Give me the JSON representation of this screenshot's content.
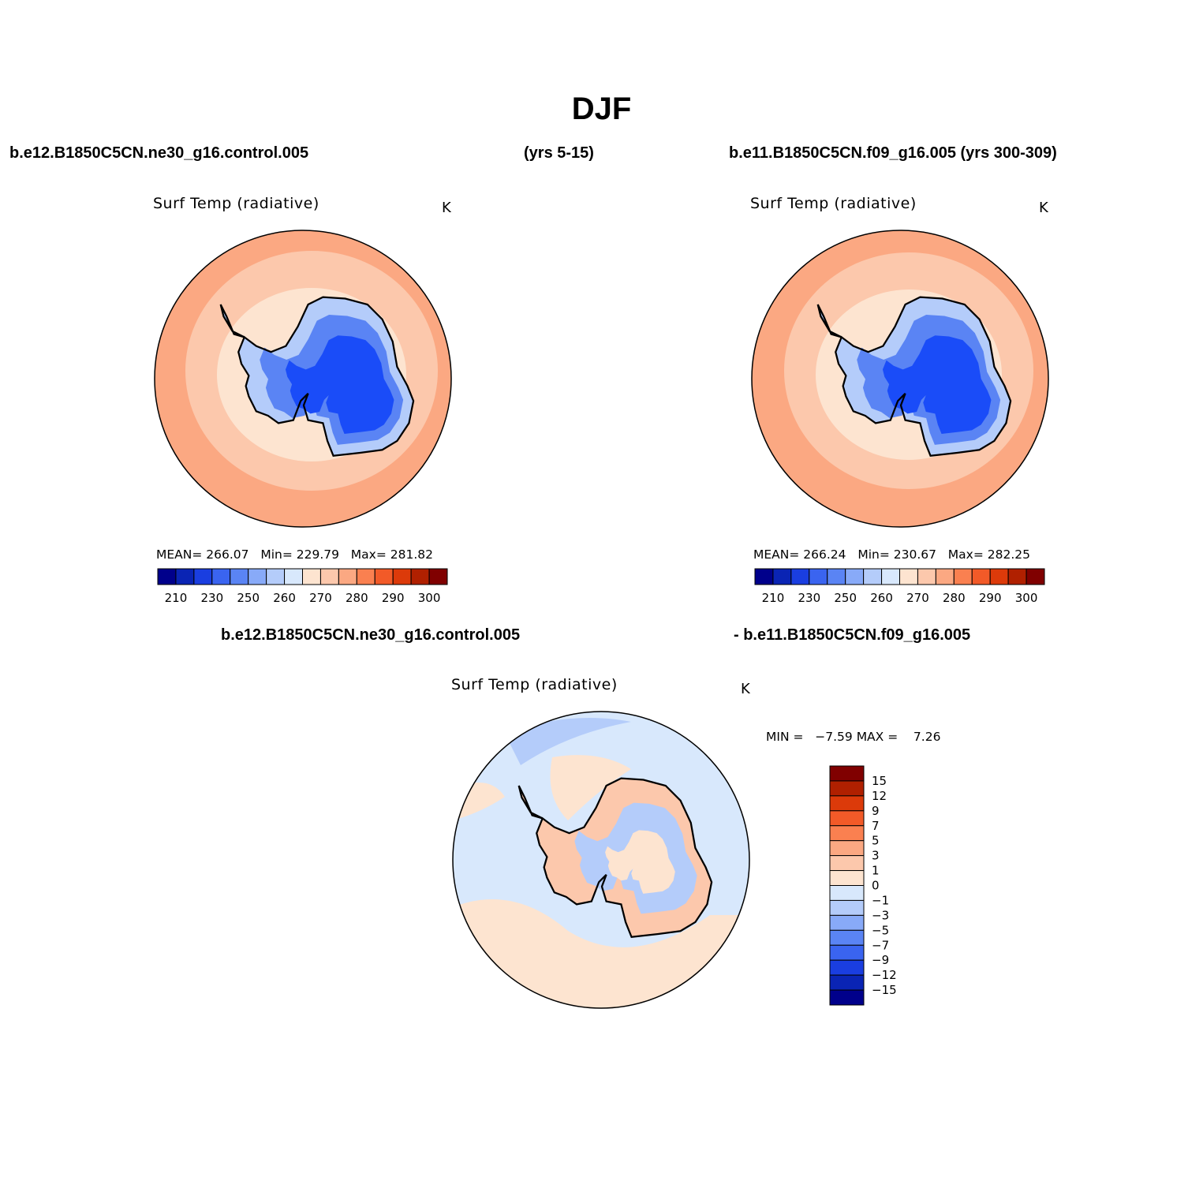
{
  "header": {
    "title": "DJF",
    "case1": "b.e12.B1850C5CN.ne30_g16.control.005",
    "case1_years": "(yrs 5-15)",
    "case2": "b.e11.B1850C5CN.f09_g16.005 (yrs 300-309)",
    "diff_case1": "b.e12.B1850C5CN.ne30_g16.control.005",
    "diff_case2": "- b.e11.B1850C5CN.f09_g16.005"
  },
  "panels": [
    {
      "title": "Surf Temp (radiative)",
      "units": "K",
      "stats": {
        "mean_label": "MEAN=",
        "mean": "266.07",
        "min_label": "Min=",
        "min": "229.79",
        "max_label": "Max=",
        "max": "281.82"
      }
    },
    {
      "title": "Surf Temp (radiative)",
      "units": "K",
      "stats": {
        "mean_label": "MEAN=",
        "mean": "266.24",
        "min_label": "Min=",
        "min": "230.67",
        "max_label": "Max=",
        "max": "282.25"
      }
    }
  ],
  "diff_panel": {
    "title": "Surf Temp (radiative)",
    "units": "K",
    "stats": {
      "min_label": "MIN =",
      "min": "−7.59",
      "max_label": "MAX =",
      "max": "7.26"
    }
  },
  "colorbar_abs": {
    "colors": [
      "#00008b",
      "#0a24b4",
      "#1a3ee0",
      "#3a64f0",
      "#5a84f4",
      "#88aaf8",
      "#b4ccfa",
      "#d8e8fc",
      "#fde4d0",
      "#fcc8ac",
      "#fba882",
      "#fa8050",
      "#f25a28",
      "#dc3a0a",
      "#b02000",
      "#800000"
    ],
    "labels": [
      "210",
      "230",
      "250",
      "260",
      "270",
      "280",
      "290",
      "300"
    ]
  },
  "colorbar_diff": {
    "colors": [
      "#00008b",
      "#0a24b4",
      "#1a3ee0",
      "#3a64f0",
      "#5a84f4",
      "#88aaf8",
      "#b4ccfa",
      "#d8e8fc",
      "#fde4d0",
      "#fcc8ac",
      "#fba882",
      "#fa8050",
      "#f25a28",
      "#dc3a0a",
      "#b02000",
      "#800000"
    ],
    "labels": [
      "−15",
      "−12",
      "−9",
      "−7",
      "−5",
      "−3",
      "−1",
      "0",
      "1",
      "3",
      "5",
      "7",
      "9",
      "12",
      "15"
    ]
  },
  "map_colors": {
    "warm_outer": "#fba882",
    "warm_mid": "#fcc8ac",
    "warm_pale": "#fde4d0",
    "cold_light": "#b4ccfa",
    "cold_mid": "#5a84f4",
    "cold_core": "#1a4cf8",
    "diff_neg_pale": "#d8e8fc",
    "diff_neg": "#b4ccfa",
    "diff_neg_strong": "#5a84f4",
    "diff_pos_pale": "#fde4d0",
    "diff_pos": "#fcc8ac",
    "coast": "#000000"
  }
}
